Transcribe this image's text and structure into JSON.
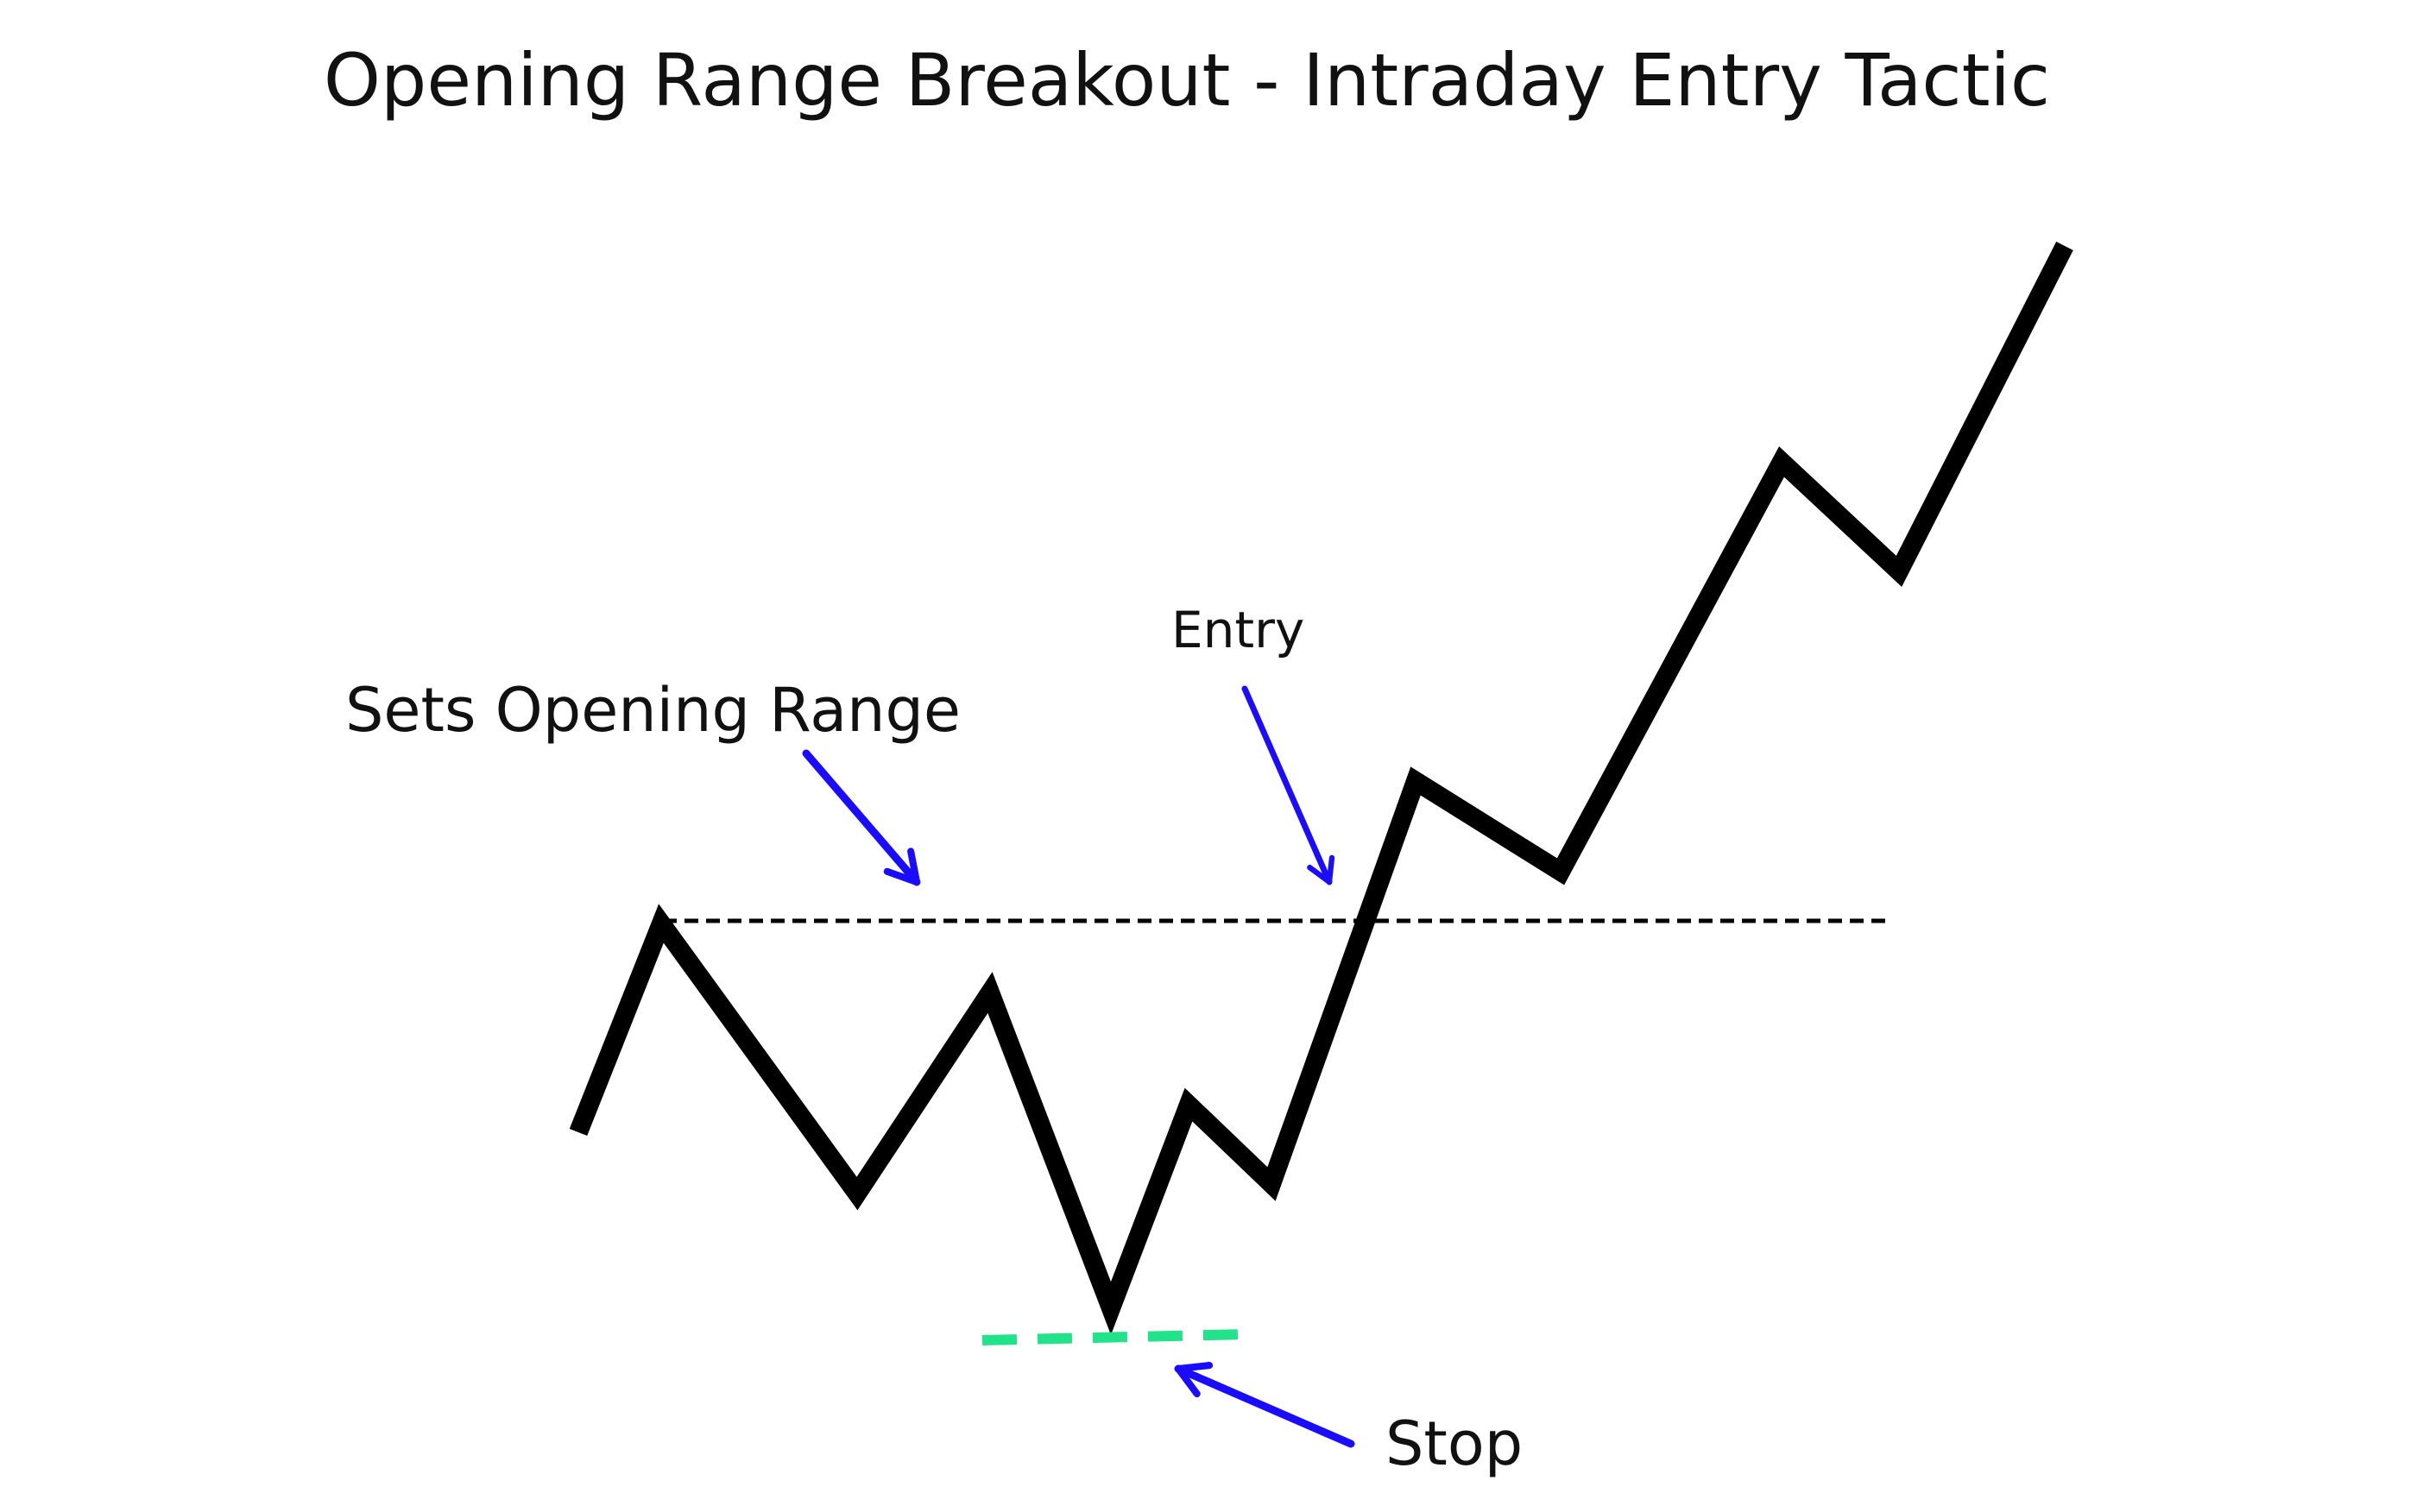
{
  "title": "Opening Range Breakout - Intraday Entry Tactic",
  "annotations": {
    "opening_range": "Sets Opening Range",
    "entry": "Entry",
    "stop": "Stop"
  },
  "colors": {
    "price_line": "#000000",
    "range_line": "#000000",
    "stop_line": "#22e38a",
    "arrow": "#1a0dff"
  }
}
